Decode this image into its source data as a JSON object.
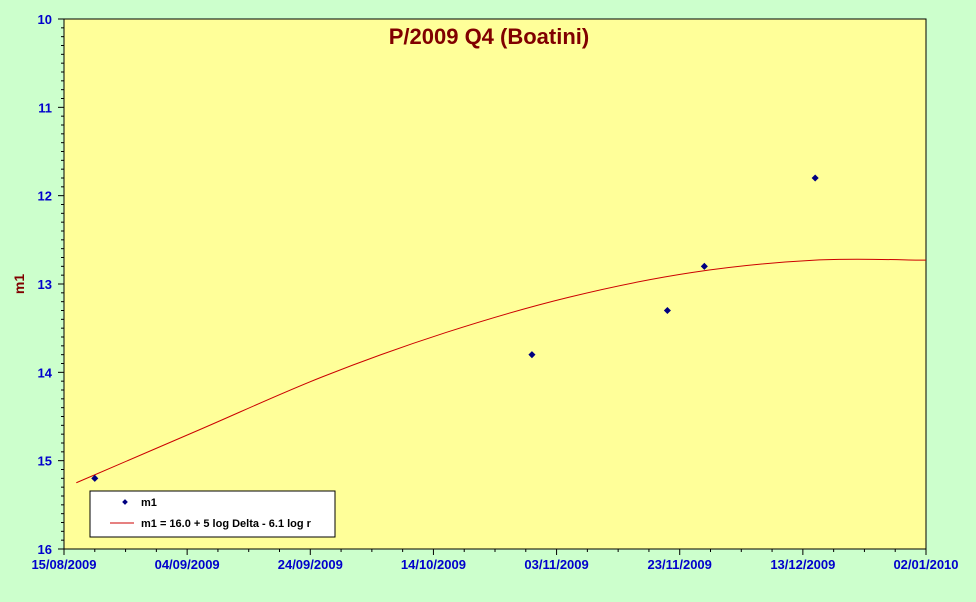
{
  "chart_data": {
    "type": "scatter",
    "title": "P/2009 Q4 (Boatini)",
    "xlabel": "",
    "ylabel": "m1",
    "x_ticks": [
      "15/08/2009",
      "04/09/2009",
      "24/09/2009",
      "14/10/2009",
      "03/11/2009",
      "23/11/2009",
      "13/12/2009",
      "02/01/2010"
    ],
    "y_ticks": [
      "10",
      "11",
      "12",
      "13",
      "14",
      "15",
      "16"
    ],
    "xlim": [
      "2009-08-15",
      "2010-01-02"
    ],
    "ylim": [
      16,
      10
    ],
    "y_inverted": true,
    "series": [
      {
        "name": "m1",
        "kind": "points",
        "x": [
          "2009-08-20",
          "2009-10-30",
          "2009-11-21",
          "2009-11-27",
          "2009-12-15"
        ],
        "y": [
          15.2,
          13.8,
          13.3,
          12.8,
          11.8
        ]
      },
      {
        "name": "m1 = 16.0 + 5 log Delta - 6.1 log r",
        "kind": "line",
        "x": [
          "2009-08-17",
          "2009-09-06",
          "2009-09-26",
          "2009-10-16",
          "2009-11-05",
          "2009-11-25",
          "2009-12-15",
          "2010-01-02"
        ],
        "y": [
          15.25,
          14.65,
          14.05,
          13.55,
          13.15,
          12.87,
          12.73,
          12.73
        ]
      }
    ],
    "legend_position": "bottom-left",
    "grid": false,
    "colors": {
      "plot_background": "#ffff99",
      "page_background": "#ccffcc",
      "points": "#000080",
      "line": "#cc0000",
      "tick_labels": "#0000cc",
      "title": "#800000"
    }
  }
}
